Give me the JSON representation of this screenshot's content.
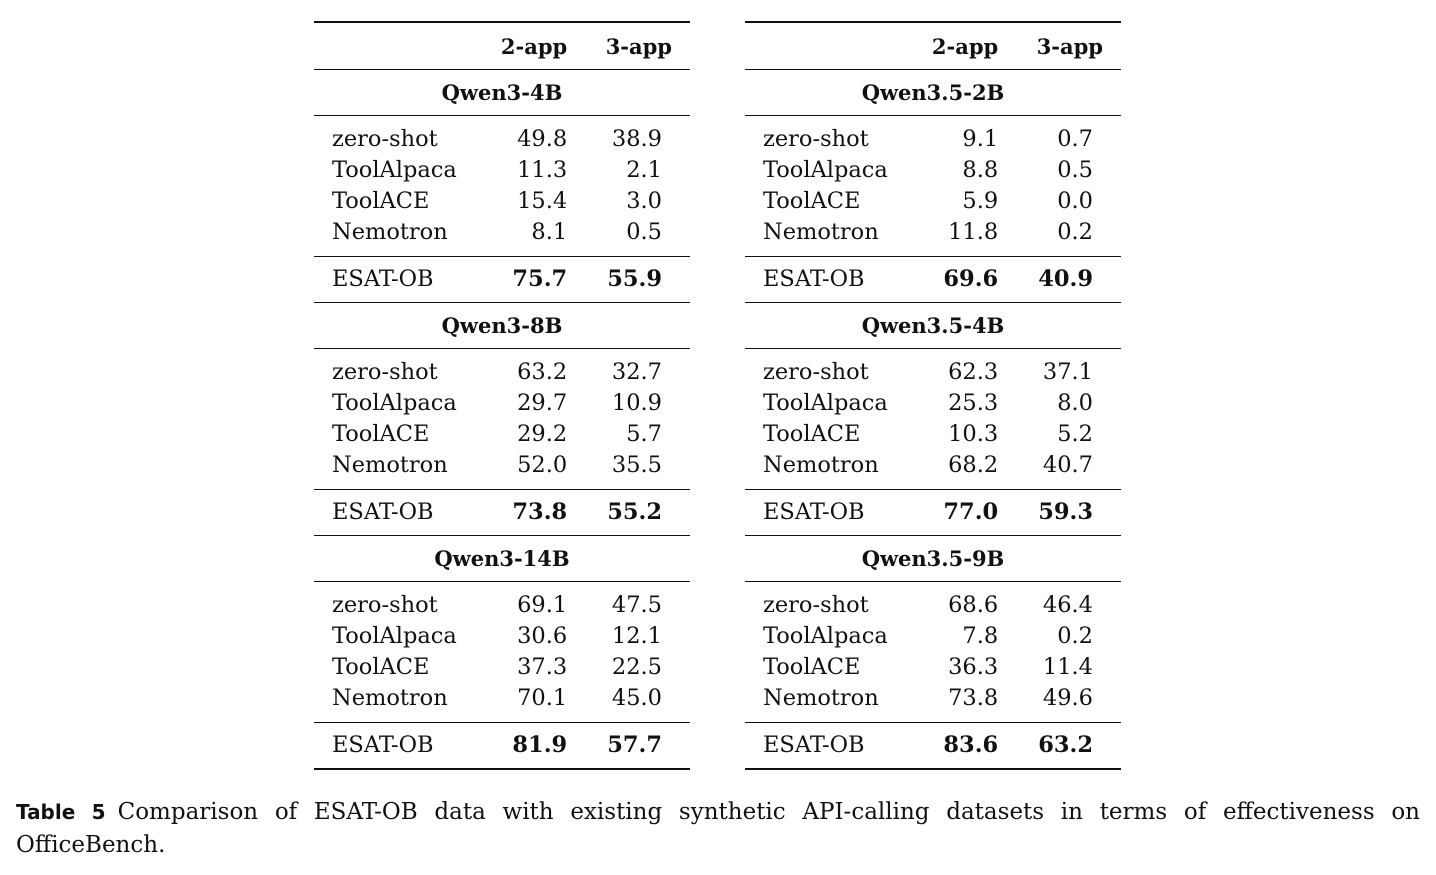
{
  "tables": [
    {
      "headers": [
        "",
        "2-app",
        "3-app"
      ],
      "groups": [
        {
          "model": "Qwen3-4B",
          "rows": [
            {
              "method": "zero-shot",
              "a": "49.8",
              "b": "38.9"
            },
            {
              "method": "ToolAlpaca",
              "a": "11.3",
              "b": "2.1"
            },
            {
              "method": "ToolACE",
              "a": "15.4",
              "b": "3.0"
            },
            {
              "method": "Nemotron",
              "a": "8.1",
              "b": "0.5"
            }
          ],
          "esat": {
            "method": "ESAT-OB",
            "a": "75.7",
            "b": "55.9"
          }
        },
        {
          "model": "Qwen3-8B",
          "rows": [
            {
              "method": "zero-shot",
              "a": "63.2",
              "b": "32.7"
            },
            {
              "method": "ToolAlpaca",
              "a": "29.7",
              "b": "10.9"
            },
            {
              "method": "ToolACE",
              "a": "29.2",
              "b": "5.7"
            },
            {
              "method": "Nemotron",
              "a": "52.0",
              "b": "35.5"
            }
          ],
          "esat": {
            "method": "ESAT-OB",
            "a": "73.8",
            "b": "55.2"
          }
        },
        {
          "model": "Qwen3-14B",
          "rows": [
            {
              "method": "zero-shot",
              "a": "69.1",
              "b": "47.5"
            },
            {
              "method": "ToolAlpaca",
              "a": "30.6",
              "b": "12.1"
            },
            {
              "method": "ToolACE",
              "a": "37.3",
              "b": "22.5"
            },
            {
              "method": "Nemotron",
              "a": "70.1",
              "b": "45.0"
            }
          ],
          "esat": {
            "method": "ESAT-OB",
            "a": "81.9",
            "b": "57.7"
          }
        }
      ]
    },
    {
      "headers": [
        "",
        "2-app",
        "3-app"
      ],
      "groups": [
        {
          "model": "Qwen3.5-2B",
          "rows": [
            {
              "method": "zero-shot",
              "a": "9.1",
              "b": "0.7"
            },
            {
              "method": "ToolAlpaca",
              "a": "8.8",
              "b": "0.5"
            },
            {
              "method": "ToolACE",
              "a": "5.9",
              "b": "0.0"
            },
            {
              "method": "Nemotron",
              "a": "11.8",
              "b": "0.2"
            }
          ],
          "esat": {
            "method": "ESAT-OB",
            "a": "69.6",
            "b": "40.9"
          }
        },
        {
          "model": "Qwen3.5-4B",
          "rows": [
            {
              "method": "zero-shot",
              "a": "62.3",
              "b": "37.1"
            },
            {
              "method": "ToolAlpaca",
              "a": "25.3",
              "b": "8.0"
            },
            {
              "method": "ToolACE",
              "a": "10.3",
              "b": "5.2"
            },
            {
              "method": "Nemotron",
              "a": "68.2",
              "b": "40.7"
            }
          ],
          "esat": {
            "method": "ESAT-OB",
            "a": "77.0",
            "b": "59.3"
          }
        },
        {
          "model": "Qwen3.5-9B",
          "rows": [
            {
              "method": "zero-shot",
              "a": "68.6",
              "b": "46.4"
            },
            {
              "method": "ToolAlpaca",
              "a": "7.8",
              "b": "0.2"
            },
            {
              "method": "ToolACE",
              "a": "36.3",
              "b": "11.4"
            },
            {
              "method": "Nemotron",
              "a": "73.8",
              "b": "49.6"
            }
          ],
          "esat": {
            "method": "ESAT-OB",
            "a": "83.6",
            "b": "63.2"
          }
        }
      ]
    }
  ],
  "caption": {
    "label": "Table 5",
    "text": "Comparison of ESAT-OB data with existing synthetic API-calling datasets in terms of effectiveness on OfficeBench."
  }
}
